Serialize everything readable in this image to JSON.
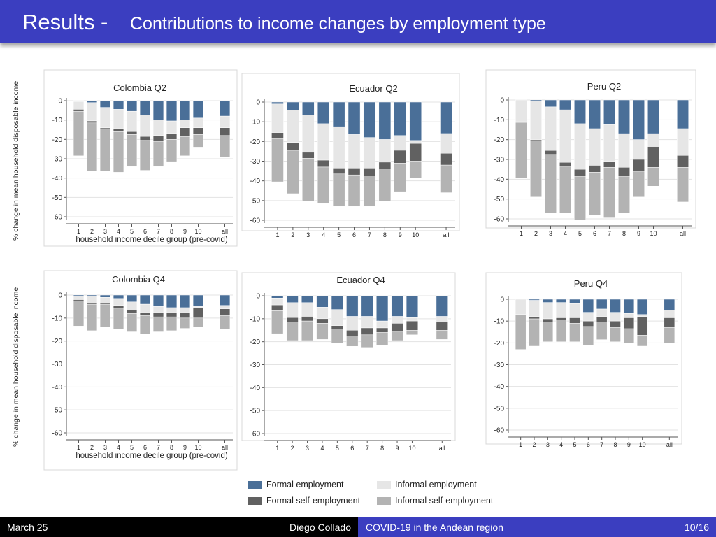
{
  "slide": {
    "title": "Results -",
    "subtitle": "Contributions to income changes by employment type",
    "ylabel": "% change in mean household disposable income"
  },
  "footer": {
    "date": "March 25",
    "author": "Diego Collado",
    "talk_title": "COVID-19 in the Andean region",
    "page": "10/16"
  },
  "legend": [
    {
      "label": "Formal employment",
      "color": "#4a6f98"
    },
    {
      "label": "Informal employment",
      "color": "#e6e6e6"
    },
    {
      "label": "Formal self-employment",
      "color": "#616161"
    },
    {
      "label": "Informal self-employment",
      "color": "#b3b3b3"
    }
  ],
  "chart_data": [
    {
      "type": "bar",
      "stacked": true,
      "title": "Colombia Q2",
      "xlabel": "household income decile group (pre-covid)",
      "ylabel": "% change in mean household disposable income",
      "ylim": [
        -60,
        0
      ],
      "yticks": [
        0,
        -10,
        -20,
        -30,
        -40,
        -50,
        -60
      ],
      "grid": true,
      "categories": [
        "1",
        "2",
        "3",
        "4",
        "5",
        "6",
        "7",
        "8",
        "9",
        "10",
        "all"
      ],
      "series": [
        {
          "name": "Formal employment",
          "values": [
            -0.5,
            -1,
            -3.5,
            -4.5,
            -5.5,
            -7.5,
            -10,
            -10.5,
            -10,
            -9,
            -8
          ]
        },
        {
          "name": "Informal employment",
          "values": [
            -4,
            -9.5,
            -10.5,
            -10,
            -10.5,
            -11,
            -8,
            -6.5,
            -4,
            -5,
            -6
          ]
        },
        {
          "name": "Formal self-employment",
          "values": [
            -1,
            -1,
            -0.5,
            -1.5,
            -1.5,
            -2,
            -3,
            -3,
            -4.5,
            -3.5,
            -4
          ]
        },
        {
          "name": "Informal self-employment",
          "values": [
            -23,
            -25,
            -22,
            -21,
            -16.5,
            -15.5,
            -13,
            -11.5,
            -10,
            -6.5,
            -11
          ]
        }
      ]
    },
    {
      "type": "bar",
      "stacked": true,
      "title": "Ecuador Q2",
      "xlabel": "",
      "ylabel": "",
      "ylim": [
        -60,
        0
      ],
      "yticks": [
        0,
        -10,
        -20,
        -30,
        -40,
        -50,
        -60
      ],
      "grid": true,
      "categories": [
        "1",
        "2",
        "3",
        "4",
        "5",
        "6",
        "7",
        "8",
        "9",
        "10",
        "all"
      ],
      "series": [
        {
          "name": "Formal employment",
          "values": [
            -1,
            -4,
            -6.5,
            -11,
            -12.5,
            -16.5,
            -18,
            -19,
            -17,
            -19.5,
            -16
          ]
        },
        {
          "name": "Informal employment",
          "values": [
            -14.5,
            -16.5,
            -19,
            -18.5,
            -21,
            -17,
            -15.5,
            -11.5,
            -7.5,
            -1.5,
            -10
          ]
        },
        {
          "name": "Formal self-employment",
          "values": [
            -3,
            -4,
            -3,
            -3.5,
            -3,
            -3.5,
            -4,
            -3.5,
            -6.5,
            -9,
            -6
          ]
        },
        {
          "name": "Informal self-employment",
          "values": [
            -22,
            -22,
            -22,
            -18.5,
            -16.5,
            -16,
            -15.5,
            -16.5,
            -14.5,
            -8.5,
            -14
          ]
        }
      ]
    },
    {
      "type": "bar",
      "stacked": true,
      "title": "Peru Q2",
      "xlabel": "",
      "ylabel": "",
      "ylim": [
        -60,
        0
      ],
      "yticks": [
        0,
        -10,
        -20,
        -30,
        -40,
        -50,
        -60
      ],
      "grid": true,
      "categories": [
        "1",
        "2",
        "3",
        "4",
        "5",
        "6",
        "7",
        "8",
        "9",
        "10",
        "all"
      ],
      "series": [
        {
          "name": "Formal employment",
          "values": [
            0,
            -0.5,
            -3.5,
            -5,
            -12,
            -14.5,
            -12.5,
            -17,
            -20,
            -17,
            -14.5
          ]
        },
        {
          "name": "Informal employment",
          "values": [
            -11,
            -19.5,
            -22,
            -26.5,
            -23,
            -18.5,
            -18.5,
            -17,
            -10,
            -6.5,
            -13.5
          ]
        },
        {
          "name": "Formal self-employment",
          "values": [
            -0.5,
            -0.5,
            -2,
            -2,
            -3.5,
            -3.5,
            -3,
            -4.5,
            -6,
            -10.5,
            -6
          ]
        },
        {
          "name": "Informal self-employment",
          "values": [
            -28,
            -28.5,
            -29.5,
            -23.5,
            -22,
            -21.5,
            -25.5,
            -18.5,
            -13,
            -9.5,
            -17.5
          ]
        }
      ]
    },
    {
      "type": "bar",
      "stacked": true,
      "title": "Colombia Q4",
      "xlabel": "household income decile group (pre-covid)",
      "ylabel": "% change in mean household disposable income",
      "ylim": [
        -60,
        0
      ],
      "yticks": [
        0,
        -10,
        -20,
        -30,
        -40,
        -50,
        -60
      ],
      "grid": true,
      "categories": [
        "1",
        "2",
        "3",
        "4",
        "5",
        "6",
        "7",
        "8",
        "9",
        "10",
        "all"
      ],
      "series": [
        {
          "name": "Formal employment",
          "values": [
            -0.5,
            -0.5,
            -1,
            -1.5,
            -3,
            -4,
            -5,
            -5.5,
            -5.5,
            -5,
            -4.5
          ]
        },
        {
          "name": "Informal employment",
          "values": [
            -1.5,
            -3,
            -2.5,
            -3,
            -3.5,
            -3.5,
            -2.5,
            -2,
            -2,
            -0.5,
            -1.5
          ]
        },
        {
          "name": "Formal self-employment",
          "values": [
            -0.5,
            -0.5,
            -0.5,
            -1.5,
            -1.5,
            -1.5,
            -2,
            -2,
            -2.5,
            -4.5,
            -3
          ]
        },
        {
          "name": "Informal self-employment",
          "values": [
            -11,
            -11.5,
            -10,
            -9,
            -8,
            -8,
            -6.5,
            -6,
            -4.5,
            -4,
            -6
          ]
        }
      ]
    },
    {
      "type": "bar",
      "stacked": true,
      "title": "Ecuador Q4",
      "xlabel": "",
      "ylabel": "",
      "ylim": [
        -60,
        0
      ],
      "yticks": [
        0,
        -10,
        -20,
        -30,
        -40,
        -50,
        -60
      ],
      "grid": true,
      "categories": [
        "1",
        "2",
        "3",
        "4",
        "5",
        "6",
        "7",
        "8",
        "9",
        "10",
        "all"
      ],
      "series": [
        {
          "name": "Formal employment",
          "values": [
            -1,
            -3,
            -3,
            -5,
            -6,
            -9,
            -9,
            -11,
            -9,
            -9.5,
            -9
          ]
        },
        {
          "name": "Informal employment",
          "values": [
            -3,
            -6.5,
            -6,
            -5,
            -7,
            -6,
            -5,
            -3,
            -3,
            -1.5,
            -2.5
          ]
        },
        {
          "name": "Formal self-employment",
          "values": [
            -2.5,
            -2,
            -2,
            -2,
            -1.5,
            -2.5,
            -3,
            -2,
            -3.5,
            -4,
            -3.5
          ]
        },
        {
          "name": "Informal self-employment",
          "values": [
            -10,
            -8,
            -8.5,
            -7,
            -6,
            -4.5,
            -5.5,
            -5.5,
            -4,
            -2,
            -4
          ]
        }
      ]
    },
    {
      "type": "bar",
      "stacked": true,
      "title": "Peru Q4",
      "xlabel": "",
      "ylabel": "",
      "ylim": [
        -60,
        0
      ],
      "yticks": [
        0,
        -10,
        -20,
        -30,
        -40,
        -50,
        -60
      ],
      "grid": true,
      "categories": [
        "1",
        "2",
        "3",
        "4",
        "5",
        "6",
        "7",
        "8",
        "9",
        "10",
        "all"
      ],
      "series": [
        {
          "name": "Formal employment",
          "values": [
            0,
            -0.5,
            -1.5,
            -1.5,
            -2,
            -6,
            -4.5,
            -6,
            -6.5,
            -7,
            -5
          ]
        },
        {
          "name": "Informal employment",
          "values": [
            -7,
            -7.5,
            -7.5,
            -7,
            -6.5,
            -4,
            -3.5,
            -4,
            -2,
            -1,
            -3.5
          ]
        },
        {
          "name": "Formal self-employment",
          "values": [
            0,
            -1,
            -1.5,
            -1,
            -2.5,
            -2.5,
            -2.5,
            -3,
            -5,
            -8.5,
            -4.5
          ]
        },
        {
          "name": "Informal self-employment",
          "values": [
            -16,
            -12.5,
            -9,
            -10,
            -8.5,
            -8.5,
            -8,
            -6.5,
            -6.5,
            -5,
            -7
          ]
        }
      ]
    }
  ]
}
